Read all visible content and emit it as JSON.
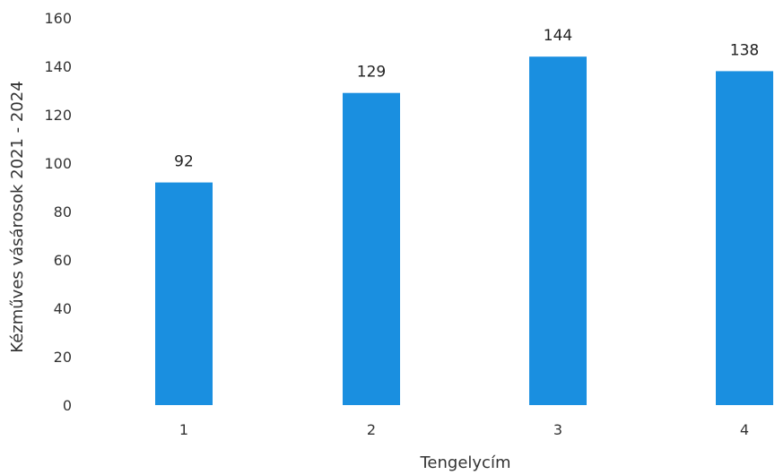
{
  "chart_data": {
    "type": "bar",
    "categories": [
      "1",
      "2",
      "3",
      "4"
    ],
    "values": [
      92,
      129,
      144,
      138
    ],
    "title": "",
    "xlabel": "Tengelycím",
    "ylabel": "Kézműves vásárosok 2021 - 2024",
    "ylim": [
      0,
      160
    ],
    "yticks": [
      0,
      20,
      40,
      60,
      80,
      100,
      120,
      140,
      160
    ],
    "grid": false,
    "legend": "none",
    "bar_color": "#1a8fe0",
    "data_labels": true
  }
}
